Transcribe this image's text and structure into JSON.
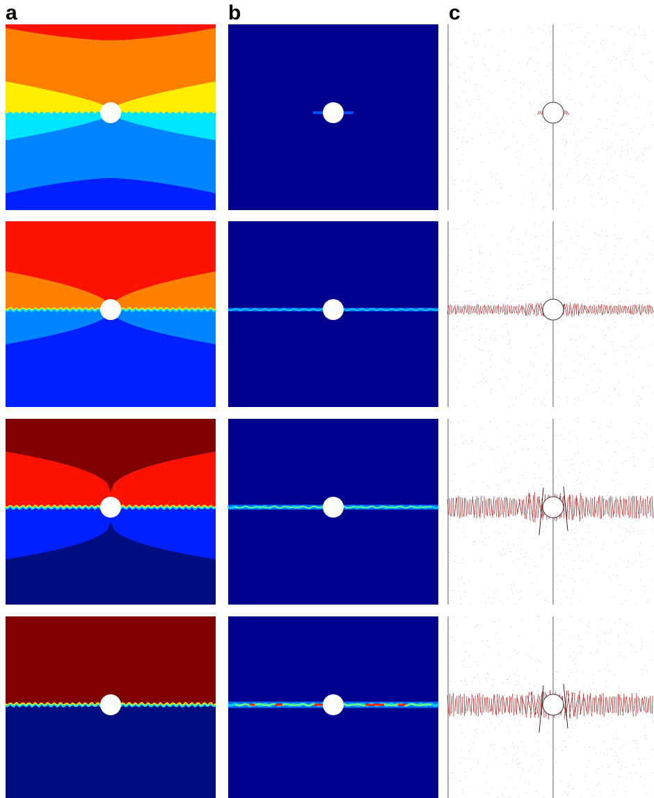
{
  "column_labels": {
    "a": "a",
    "b": "b",
    "c": "c"
  },
  "colors": {
    "jet_dark_red": "#800000",
    "jet_red": "#ff1200",
    "jet_orange": "#ff8000",
    "jet_yellow": "#ffee00",
    "jet_cyan": "#00e5ff",
    "jet_light_blue": "#0084ff",
    "jet_blue": "#0020ff",
    "jet_navy": "#000d80",
    "panel_b_background": "#00008f",
    "fiber_line": "#a52020",
    "particle": "#b0b0b0",
    "guide_line": "#777777"
  },
  "rows": [
    {
      "name": "step-1",
      "a_bands": [
        "jet_red",
        "jet_orange",
        "jet_yellow",
        "jet_cyan",
        "jet_light_blue",
        "jet_blue"
      ],
      "b_band_level": "faint",
      "c_fiber_extent": "short"
    },
    {
      "name": "step-2",
      "a_bands": [
        "jet_red",
        "jet_orange",
        "jet_light_blue",
        "jet_blue"
      ],
      "b_band_level": "weak",
      "c_fiber_extent": "full"
    },
    {
      "name": "step-3",
      "a_bands": [
        "jet_dark_red",
        "jet_red",
        "jet_blue",
        "jet_navy"
      ],
      "b_band_level": "medium",
      "c_fiber_extent": "full-dense"
    },
    {
      "name": "step-4",
      "a_bands": [
        "jet_dark_red",
        "jet_navy"
      ],
      "b_band_level": "strong",
      "c_fiber_extent": "full-dense"
    }
  ]
}
